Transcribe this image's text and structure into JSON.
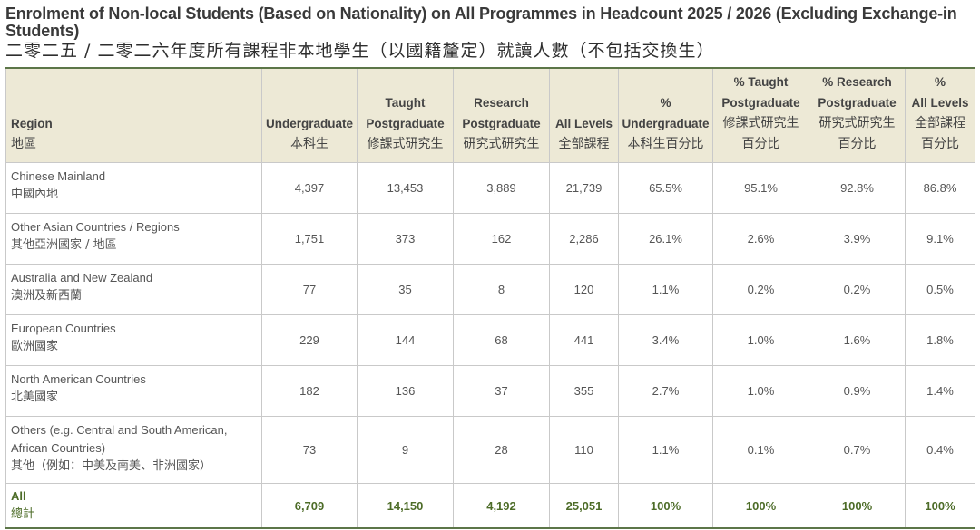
{
  "title": {
    "en": "Enrolment of Non-local Students (Based on Nationality) on All Programmes in Headcount 2025 / 2026 (Excluding Exchange-in Students)",
    "zh": "二零二五 / 二零二六年度所有課程非本地學生（以國籍釐定）就讀人數（不包括交換生）"
  },
  "headers": [
    {
      "en": [
        "Region"
      ],
      "zh": [
        "地區"
      ]
    },
    {
      "en": [
        "Undergraduate"
      ],
      "zh": [
        "本科生"
      ]
    },
    {
      "en": [
        "Taught",
        "Postgraduate"
      ],
      "zh": [
        "修課式研究生"
      ]
    },
    {
      "en": [
        "Research",
        "Postgraduate"
      ],
      "zh": [
        "研究式研究生"
      ]
    },
    {
      "en": [
        "All Levels"
      ],
      "zh": [
        "全部課程"
      ]
    },
    {
      "en": [
        "%",
        "Undergraduate"
      ],
      "zh": [
        "本科生百分比"
      ]
    },
    {
      "en": [
        "% Taught",
        "Postgraduate"
      ],
      "zh": [
        "修課式研究生",
        "百分比"
      ]
    },
    {
      "en": [
        "% Research",
        "Postgraduate"
      ],
      "zh": [
        "研究式研究生",
        "百分比"
      ]
    },
    {
      "en": [
        "%",
        "All Levels"
      ],
      "zh": [
        "全部課程",
        "百分比"
      ]
    }
  ],
  "rows": [
    {
      "region_en": [
        "Chinese Mainland"
      ],
      "region_zh": "中國內地",
      "values": [
        "4,397",
        "13,453",
        "3,889",
        "21,739",
        "65.5%",
        "95.1%",
        "92.8%",
        "86.8%"
      ]
    },
    {
      "region_en": [
        "Other Asian Countries / Regions"
      ],
      "region_zh": "其他亞洲國家 / 地區",
      "values": [
        "1,751",
        "373",
        "162",
        "2,286",
        "26.1%",
        "2.6%",
        "3.9%",
        "9.1%"
      ]
    },
    {
      "region_en": [
        "Australia and New Zealand"
      ],
      "region_zh": "澳洲及新西蘭",
      "values": [
        "77",
        "35",
        "8",
        "120",
        "1.1%",
        "0.2%",
        "0.2%",
        "0.5%"
      ]
    },
    {
      "region_en": [
        "European Countries"
      ],
      "region_zh": "歐洲國家",
      "values": [
        "229",
        "144",
        "68",
        "441",
        "3.4%",
        "1.0%",
        "1.6%",
        "1.8%"
      ]
    },
    {
      "region_en": [
        "North American Countries"
      ],
      "region_zh": "北美國家",
      "values": [
        "182",
        "136",
        "37",
        "355",
        "2.7%",
        "1.0%",
        "0.9%",
        "1.4%"
      ]
    },
    {
      "region_en": [
        "Others (e.g. Central and South American,",
        "African Countries)"
      ],
      "region_zh": "其他（例如：中美及南美、非洲國家）",
      "values": [
        "73",
        "9",
        "28",
        "110",
        "1.1%",
        "0.1%",
        "0.7%",
        "0.4%"
      ]
    }
  ],
  "total": {
    "region_en": "All",
    "region_zh": "總計",
    "values": [
      "6,709",
      "14,150",
      "4,192",
      "25,051",
      "100%",
      "100%",
      "100%",
      "100%"
    ]
  }
}
